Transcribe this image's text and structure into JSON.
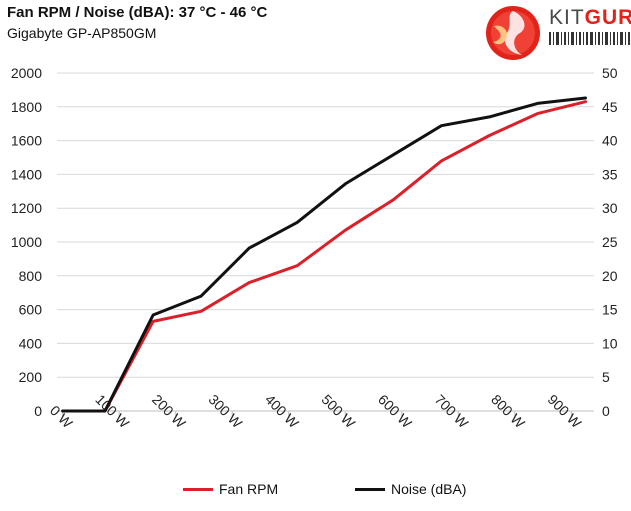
{
  "header": {
    "title": "Fan RPM / Noise (dBA): 37 °C - 46 °C",
    "subtitle": "Gigabyte GP-AP850GM"
  },
  "logo": {
    "kit": "KIT",
    "guru": "GURU"
  },
  "colors": {
    "fan_rpm": "#dc2029",
    "noise": "#111111",
    "grid": "#d9d9d9",
    "brand": "#e2231a"
  },
  "chart_data": {
    "type": "line",
    "title": "Fan RPM / Noise (dBA): 37 °C - 46 °C",
    "categories": [
      "0 W",
      "100 W",
      "200 W",
      "300 W",
      "400 W",
      "500 W",
      "600 W",
      "700 W",
      "800 W",
      "900 W"
    ],
    "x_range": [
      0,
      950
    ],
    "y_left": {
      "min": 0,
      "max": 2000,
      "step": 200,
      "ticks": [
        "0",
        "200",
        "400",
        "600",
        "800",
        "1000",
        "1200",
        "1400",
        "1600",
        "1800",
        "2000"
      ]
    },
    "y_right": {
      "min": 0,
      "max": 50,
      "step": 5,
      "ticks": [
        "0",
        "5",
        "10",
        "15",
        "20",
        "25",
        "30",
        "35",
        "40",
        "45",
        "50"
      ]
    },
    "series": [
      {
        "name": "Fan RPM",
        "axis": "left",
        "x": [
          10,
          85,
          170,
          255,
          340,
          425,
          510,
          595,
          680,
          765,
          850,
          935
        ],
        "values": [
          0,
          0,
          530,
          590,
          760,
          860,
          1070,
          1250,
          1480,
          1630,
          1760,
          1830
        ]
      },
      {
        "name": "Noise (dBA)",
        "axis": "right",
        "x": [
          10,
          85,
          170,
          255,
          340,
          425,
          510,
          595,
          680,
          765,
          850,
          935
        ],
        "values": [
          0,
          0,
          14.2,
          17.0,
          24.1,
          27.9,
          33.6,
          37.9,
          42.2,
          43.5,
          45.5,
          46.3
        ]
      }
    ],
    "legend": [
      "Fan RPM",
      "Noise (dBA)"
    ],
    "legend_position": "bottom"
  }
}
